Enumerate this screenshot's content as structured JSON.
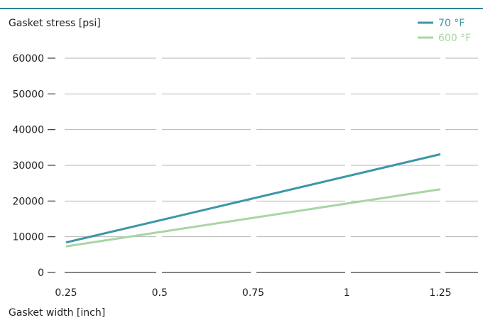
{
  "chart_data": {
    "type": "line",
    "ylabel": "Gasket stress [psi]",
    "xlabel": "Gasket width [inch]",
    "x": [
      0.25,
      1.25
    ],
    "x_ticks": [
      0.25,
      0.5,
      0.75,
      1,
      1.25
    ],
    "x_tick_labels": [
      "0.25",
      "0.5",
      "0.75",
      "1",
      "1.25"
    ],
    "y_ticks": [
      0,
      10000,
      20000,
      30000,
      40000,
      50000,
      60000
    ],
    "y_tick_labels": [
      "0",
      "10000",
      "20000",
      "30000",
      "40000",
      "50000",
      "60000"
    ],
    "ylim": [
      0,
      60000
    ],
    "xlim": [
      0.25,
      1.25
    ],
    "grid": true,
    "legend_position": "top-right",
    "series": [
      {
        "name": "70 °F",
        "color": "#3b97a6",
        "values": [
          8400,
          33100
        ]
      },
      {
        "name": "600 °F",
        "color": "#a9d5a5",
        "values": [
          7300,
          23300
        ]
      }
    ]
  },
  "colors": {
    "top_rule": "#2b8593",
    "grid": "#b5b5b5",
    "axis": "#3a3a3a"
  }
}
